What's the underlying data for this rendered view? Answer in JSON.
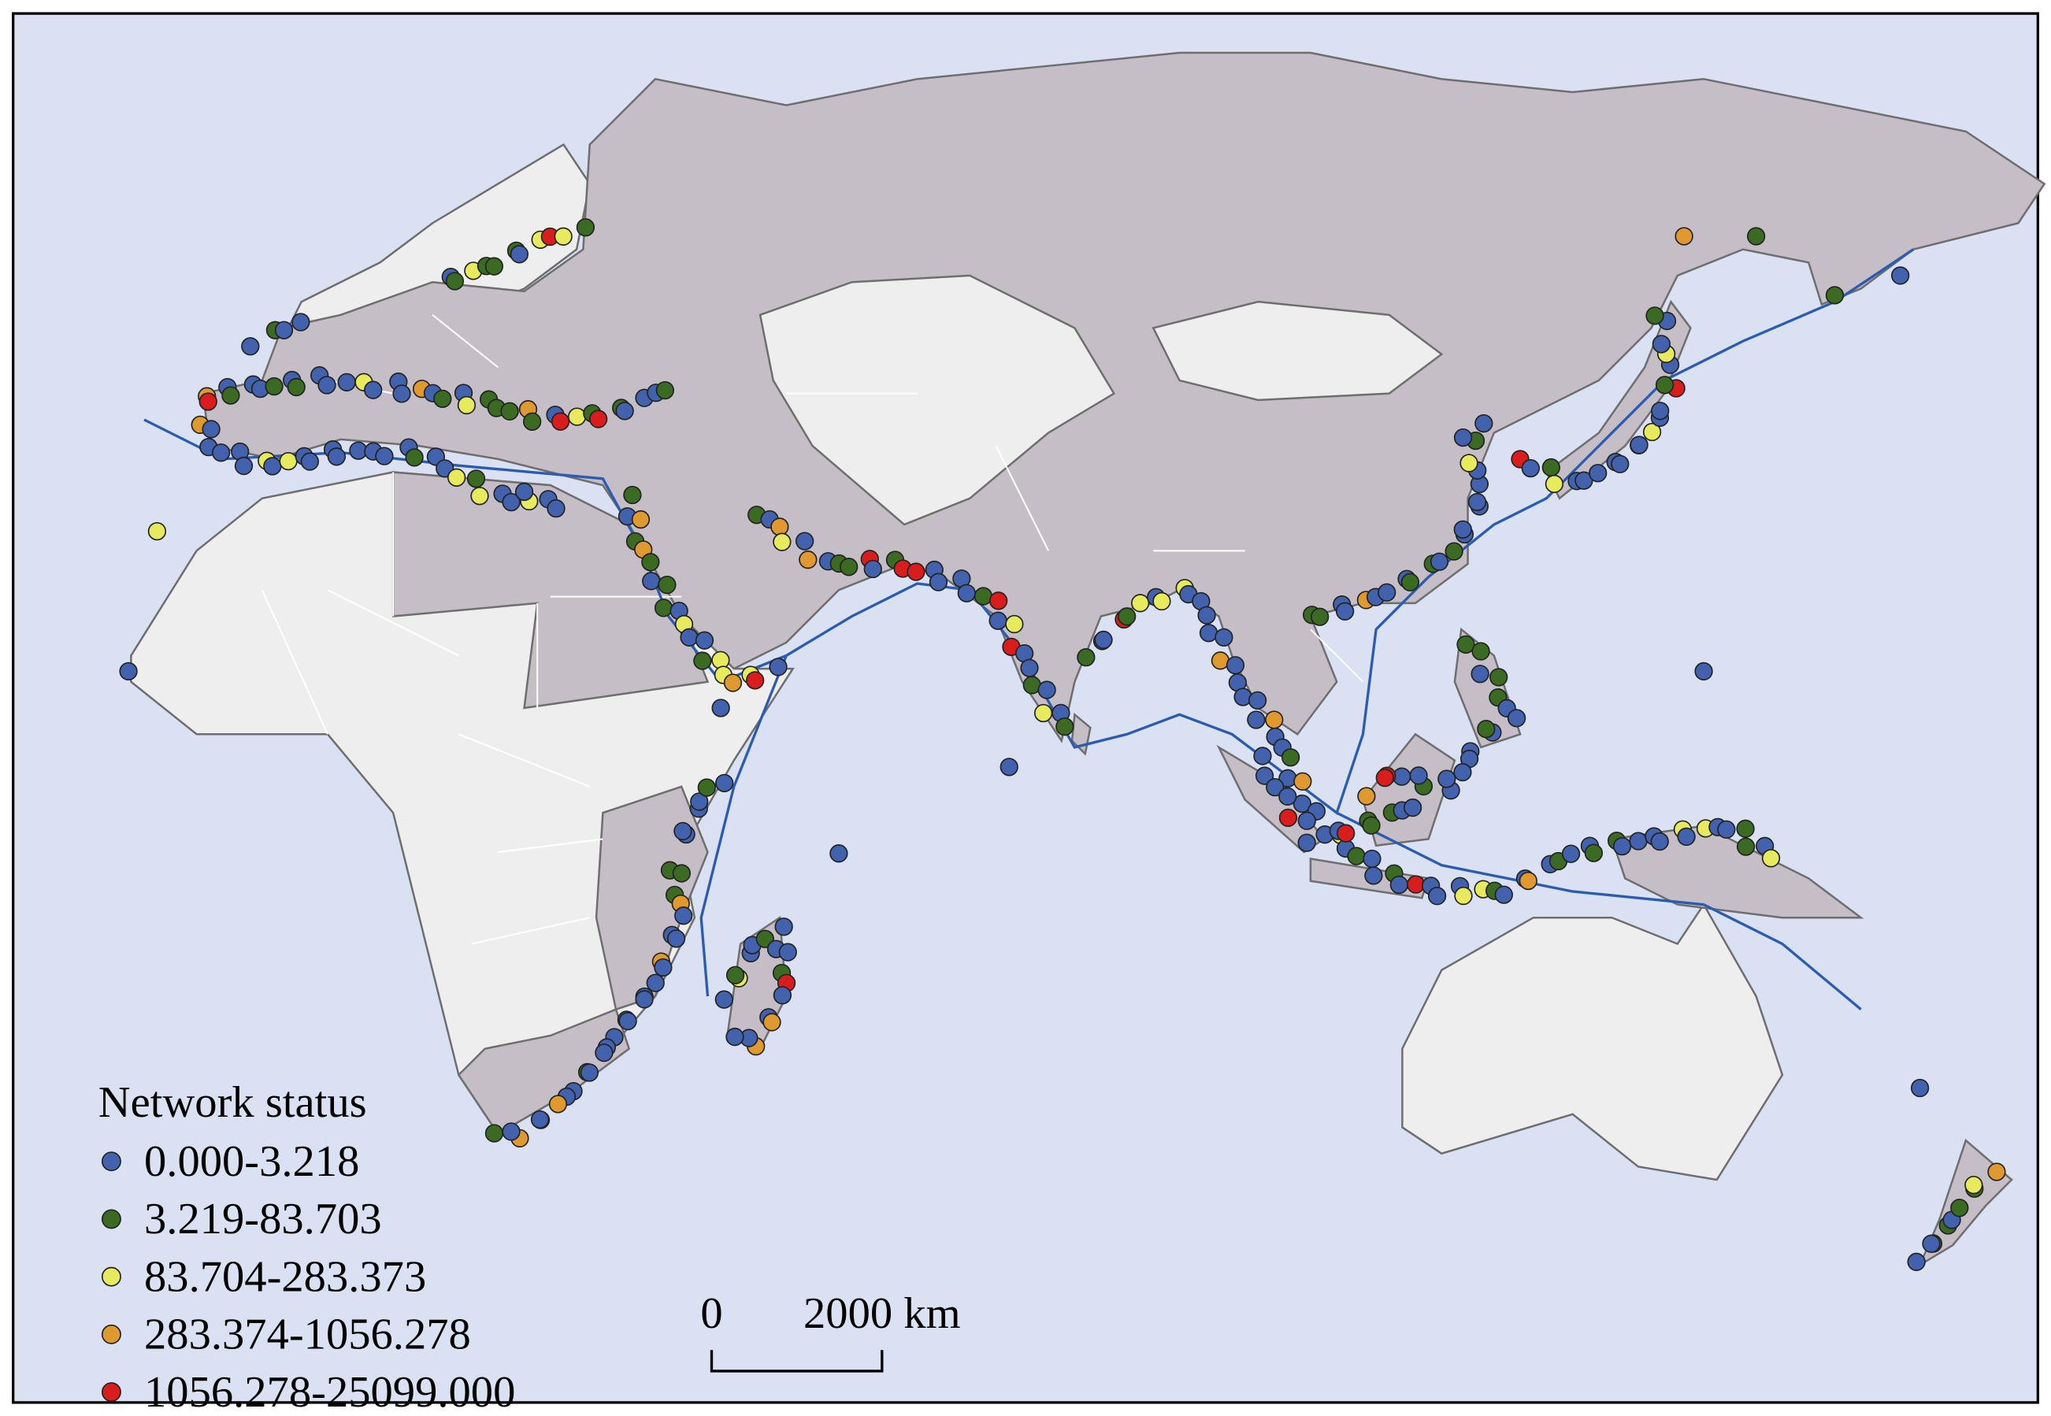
{
  "map": {
    "legend": {
      "title": "Network status",
      "items": [
        {
          "label": "0.000-3.218",
          "color": "#4262ad"
        },
        {
          "label": "3.219-83.703",
          "color": "#3b6b22"
        },
        {
          "label": "83.704-283.373",
          "color": "#e6ea5c"
        },
        {
          "label": "283.374-1056.278",
          "color": "#e0992f"
        },
        {
          "label": "1056.278-25099.000",
          "color": "#d91c1c"
        }
      ]
    },
    "scale_bar": {
      "start": "0",
      "end": "2000 km"
    }
  }
}
